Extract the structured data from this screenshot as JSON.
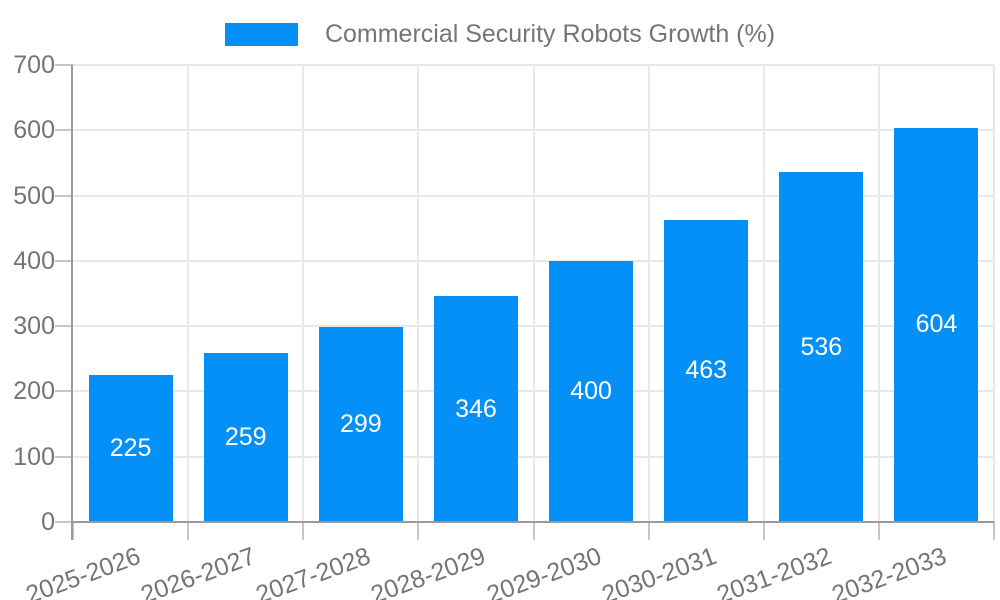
{
  "chart_data": {
    "type": "bar",
    "title": "Commercial Security Robots Growth (%)",
    "legend": {
      "position": "top",
      "items": [
        {
          "label": "Commercial Security Robots Growth (%)",
          "color": "#0590f8"
        }
      ]
    },
    "categories": [
      "2025-2026",
      "2026-2027",
      "2027-2028",
      "2028-2029",
      "2029-2030",
      "2030-2031",
      "2031-2032",
      "2032-2033"
    ],
    "series": [
      {
        "name": "Commercial Security Robots Growth (%)",
        "values": [
          225,
          259,
          299,
          346,
          400,
          463,
          536,
          604
        ]
      }
    ],
    "ylim": [
      0,
      700
    ],
    "yticks": [
      0,
      100,
      200,
      300,
      400,
      500,
      600,
      700
    ],
    "grid": {
      "horizontal": true,
      "vertical": true
    },
    "x_label_rotation_deg": -20,
    "colors": {
      "bar": "#0590f8",
      "bar_label": "#ffffff",
      "axis_text": "#757575",
      "gridline": "#e8e8e8",
      "tick": "#c6c6c6",
      "axis_line": "#9a9a9a",
      "background": "#ffffff"
    }
  }
}
